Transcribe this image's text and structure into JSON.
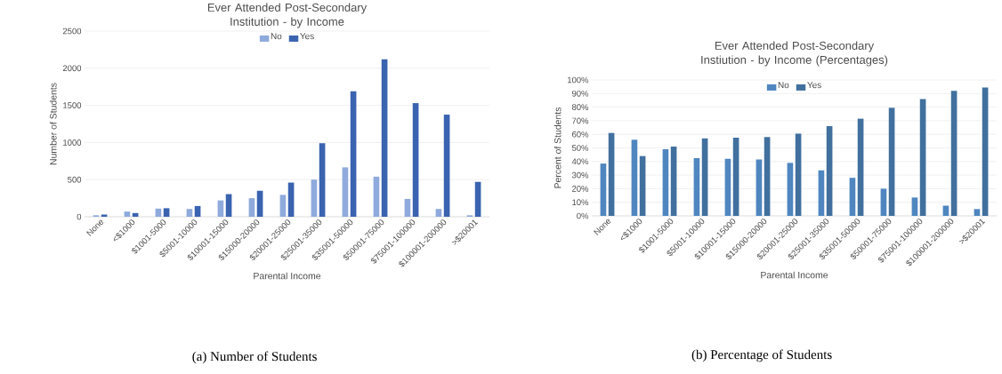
{
  "chart_data": [
    {
      "type": "bar",
      "title": "Ever Attended Post-Secondary Institution - by Income",
      "xlabel": "Parental Income",
      "ylabel": "Number of Students",
      "categories": [
        "None",
        "<$1000",
        "$1001-5000",
        "$5001-10000",
        "$10001-15000",
        "$15000-20000",
        "$20001-25000",
        "$25001-35000",
        "$35001-50000",
        "$50001-75000",
        "$75001-100000",
        "$100001-200000",
        ">$20001"
      ],
      "series": [
        {
          "name": "No",
          "color": "#8faadc",
          "values": [
            20,
            70,
            110,
            105,
            220,
            250,
            295,
            500,
            665,
            540,
            240,
            105,
            20
          ]
        },
        {
          "name": "Yes",
          "color": "#3a63b0",
          "values": [
            30,
            50,
            115,
            145,
            305,
            350,
            460,
            990,
            1690,
            2120,
            1530,
            1375,
            470
          ]
        }
      ],
      "ylim": [
        0,
        2500
      ],
      "yticks": [
        0,
        500,
        1000,
        1500,
        2000,
        2500
      ],
      "grid": "y",
      "legend": "top",
      "annotations": [
        "(a) Number of Students"
      ]
    },
    {
      "type": "bar",
      "title": "Ever Attended Post-Secondary Instiution - by Income (Percentages)",
      "xlabel": "Parental Income",
      "ylabel": "Percent of Students",
      "categories": [
        "None",
        "<$1000",
        "$1001-5000",
        "$5001-10000",
        "$10001-15000",
        "$15000-20000",
        "$20001-25000",
        "$25001-35000",
        "$35001-50000",
        "$50001-75000",
        "$75001-100000",
        "$100001-200000",
        ">$20001"
      ],
      "series": [
        {
          "name": "No",
          "color": "#4f86c0",
          "values": [
            38.5,
            56,
            49,
            42.5,
            42,
            41.5,
            39,
            33.5,
            28,
            20,
            13.5,
            7.5,
            5
          ]
        },
        {
          "name": "Yes",
          "color": "#41709e",
          "values": [
            61,
            44,
            51,
            57,
            57.5,
            58,
            60.5,
            66,
            71.5,
            79.5,
            86,
            92,
            94.5
          ]
        }
      ],
      "ylim": [
        0,
        100
      ],
      "yticks": [
        {
          "value": 0,
          "label": "0%"
        },
        {
          "value": 10,
          "label": "10%"
        },
        {
          "value": 20,
          "label": "20%"
        },
        {
          "value": 30,
          "label": "30%"
        },
        {
          "value": 40,
          "label": "40%"
        },
        {
          "value": 50,
          "label": "50%"
        },
        {
          "value": 60,
          "label": "60%"
        },
        {
          "value": 70,
          "label": "70%"
        },
        {
          "value": 80,
          "label": "80%"
        },
        {
          "value": 90,
          "label": "90%"
        },
        {
          "value": 100,
          "label": "100%"
        }
      ],
      "grid": "y",
      "legend": "top",
      "annotations": [
        "(b) Percentage of Students"
      ]
    }
  ]
}
